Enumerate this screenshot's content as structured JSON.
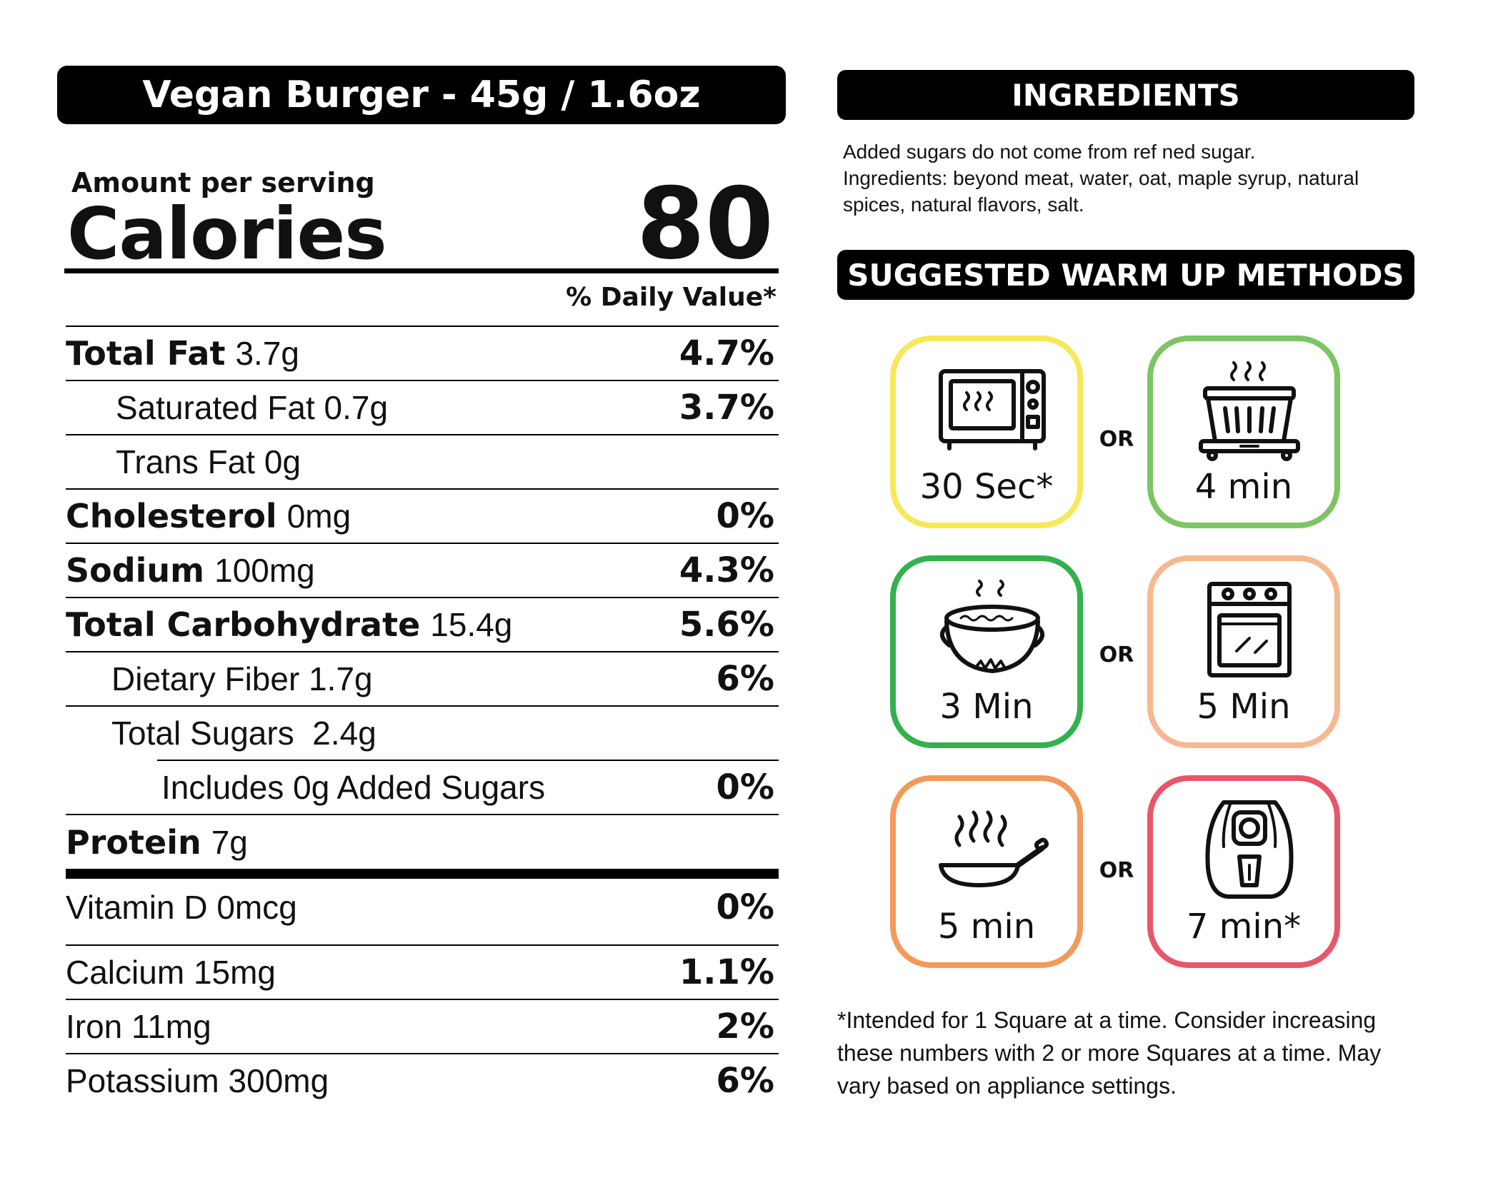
{
  "nutrition": {
    "title": "Vegan Burger - 45g / 1.6oz",
    "amount_per_serving": "Amount per serving",
    "calories_label": "Calories",
    "calories_value": "80",
    "daily_value_header": "% Daily Value*",
    "rows": [
      {
        "label": "Total Fat",
        "amount": "3.7g",
        "pct": "4.7%"
      },
      {
        "label": "Saturated Fat",
        "amount": "0.7g",
        "pct": "3.7%"
      },
      {
        "label": "Trans Fat",
        "amount": "0g",
        "pct": ""
      },
      {
        "label": "Cholesterol",
        "amount": "0mg",
        "pct": "0%"
      },
      {
        "label": "Sodium",
        "amount": "100mg",
        "pct": "4.3%"
      },
      {
        "label": "Total Carbohydrate",
        "amount": "15.4g",
        "pct": "5.6%"
      },
      {
        "label": "Dietary Fiber",
        "amount": "1.7g",
        "pct": "6%"
      },
      {
        "label": "Total Sugars",
        "amount": "2.4g",
        "pct": ""
      },
      {
        "label": "Includes 0g Added Sugars",
        "amount": "",
        "pct": "0%"
      },
      {
        "label": "Protein",
        "amount": "7g",
        "pct": ""
      },
      {
        "label": "Vitamin D",
        "amount": "0mcg",
        "pct": "0%"
      },
      {
        "label": "Calcium",
        "amount": "15mg",
        "pct": "1.1%"
      },
      {
        "label": "Iron",
        "amount": "11mg",
        "pct": "2%"
      },
      {
        "label": "Potassium",
        "amount": "300mg",
        "pct": "6%"
      }
    ]
  },
  "ingredients": {
    "header": "INGREDIENTS",
    "line1": "Added sugars do not come from ref ned sugar.",
    "line2": "Ingredients: beyond meat, water, oat, maple syrup, natural spices, natural flavors, salt."
  },
  "warmup": {
    "header": "SUGGESTED WARM UP METHODS",
    "or_label": "OR",
    "methods": [
      {
        "icon": "microwave-icon",
        "time": "30 Sec*",
        "color": "#f7e85a"
      },
      {
        "icon": "steamer-icon",
        "time": "4 min",
        "color": "#7ec464"
      },
      {
        "icon": "boiling-pot-icon",
        "time": "3 Min",
        "color": "#33b14f"
      },
      {
        "icon": "oven-icon",
        "time": "5 Min",
        "color": "#f6b890"
      },
      {
        "icon": "frying-pan-icon",
        "time": "5 min",
        "color": "#f29a5c"
      },
      {
        "icon": "air-fryer-icon",
        "time": "7 min*",
        "color": "#e8566a"
      }
    ],
    "footnote": "*Intended for 1 Square at a time. Consider increasing these numbers with 2 or more Squares at a time. May vary based on appliance settings."
  }
}
